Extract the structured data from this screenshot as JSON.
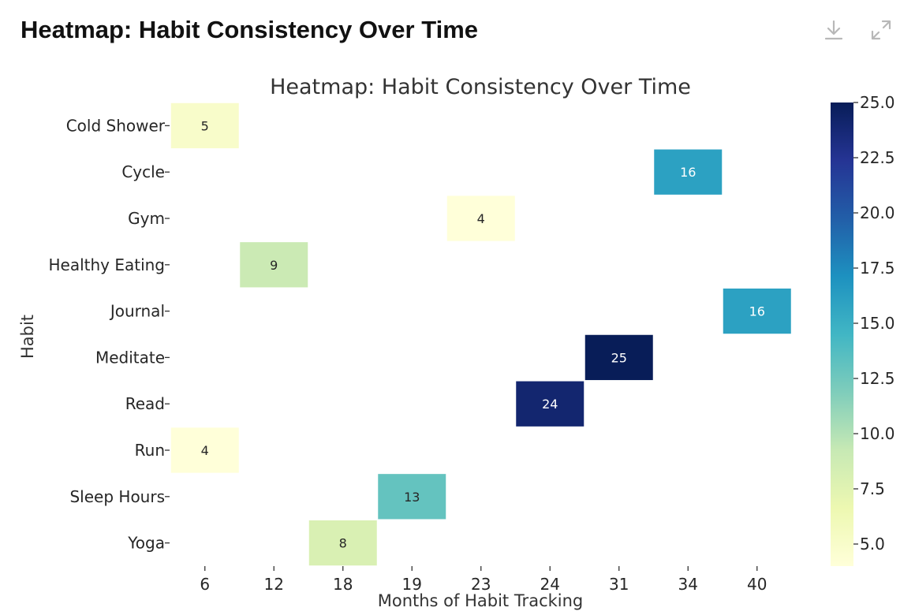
{
  "card": {
    "title": "Heatmap: Habit Consistency Over Time"
  },
  "toolbar": {
    "download_icon": "download-icon",
    "expand_icon": "expand-icon"
  },
  "chart_data": {
    "type": "heatmap",
    "title": "Heatmap: Habit Consistency Over Time",
    "xlabel": "Months of Habit Tracking",
    "ylabel": "Habit",
    "x_categories": [
      "6",
      "12",
      "18",
      "19",
      "23",
      "24",
      "31",
      "34",
      "40"
    ],
    "y_categories": [
      "Cold Shower",
      "Cycle",
      "Gym",
      "Healthy Eating",
      "Journal",
      "Meditate",
      "Read",
      "Run",
      "Sleep Hours",
      "Yoga"
    ],
    "cells": [
      {
        "habit": "Cold Shower",
        "month": "6",
        "value": 5
      },
      {
        "habit": "Cycle",
        "month": "34",
        "value": 16
      },
      {
        "habit": "Gym",
        "month": "23",
        "value": 4
      },
      {
        "habit": "Healthy Eating",
        "month": "12",
        "value": 9
      },
      {
        "habit": "Journal",
        "month": "40",
        "value": 16
      },
      {
        "habit": "Meditate",
        "month": "31",
        "value": 25
      },
      {
        "habit": "Read",
        "month": "24",
        "value": 24
      },
      {
        "habit": "Run",
        "month": "6",
        "value": 4
      },
      {
        "habit": "Sleep Hours",
        "month": "19",
        "value": 13
      },
      {
        "habit": "Yoga",
        "month": "18",
        "value": 8
      }
    ],
    "colorbar": {
      "min": 4,
      "max": 25,
      "ticks": [
        "5.0",
        "7.5",
        "10.0",
        "12.5",
        "15.0",
        "17.5",
        "20.0",
        "22.5",
        "25.0"
      ],
      "colormap": "YlGnBu",
      "stops": [
        "#ffffd9",
        "#edf8b1",
        "#c7e9b4",
        "#7fcdbb",
        "#41b6c4",
        "#1d91c0",
        "#225ea8",
        "#253494",
        "#081d58"
      ]
    },
    "grid": false
  }
}
